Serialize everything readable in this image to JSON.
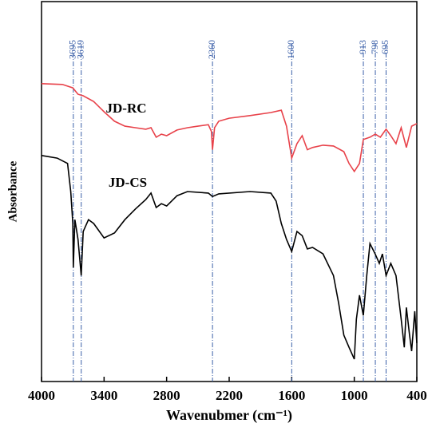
{
  "chart_data": {
    "type": "line",
    "xlabel": "Wavenubmer (cm⁻¹)",
    "ylabel": "Absorbance",
    "xlim": [
      4000,
      400
    ],
    "ylim": [
      0,
      100
    ],
    "xticks": [
      4000,
      3400,
      2800,
      2200,
      1600,
      1000,
      400
    ],
    "markers": [
      3695,
      3619,
      2360,
      1600,
      913,
      798,
      695
    ],
    "marker_color": "#3a5fa8",
    "series": [
      {
        "name": "JD-RC",
        "color": "#e8424a",
        "x": [
          4000,
          3800,
          3700,
          3650,
          3600,
          3500,
          3400,
          3300,
          3200,
          3100,
          3000,
          2950,
          2900,
          2850,
          2800,
          2700,
          2600,
          2500,
          2400,
          2370,
          2360,
          2340,
          2300,
          2200,
          2000,
          1800,
          1700,
          1650,
          1600,
          1550,
          1500,
          1450,
          1400,
          1300,
          1200,
          1100,
          1050,
          1000,
          950,
          913,
          850,
          798,
          750,
          695,
          650,
          600,
          550,
          500,
          450,
          400
        ],
        "values": [
          78.4,
          78.2,
          77.3,
          75.6,
          75.2,
          73.7,
          71.0,
          68.5,
          67.2,
          66.8,
          66.4,
          66.8,
          64.3,
          65.1,
          64.7,
          66.2,
          66.8,
          67.2,
          67.6,
          65.8,
          61.0,
          66.8,
          68.5,
          69.3,
          70.0,
          70.8,
          71.4,
          67.2,
          58.8,
          62.6,
          64.7,
          61.0,
          61.6,
          62.2,
          62.0,
          60.5,
          57.4,
          55.3,
          57.4,
          63.7,
          64.3,
          65.1,
          64.3,
          66.4,
          64.7,
          62.6,
          66.8,
          61.6,
          67.2,
          67.9
        ]
      },
      {
        "name": "JD-CS",
        "color": "#000000",
        "x": [
          4000,
          3850,
          3750,
          3720,
          3700,
          3695,
          3680,
          3650,
          3619,
          3600,
          3550,
          3500,
          3400,
          3300,
          3200,
          3100,
          3000,
          2950,
          2900,
          2850,
          2800,
          2700,
          2600,
          2400,
          2360,
          2300,
          2000,
          1800,
          1750,
          1700,
          1650,
          1600,
          1550,
          1500,
          1450,
          1400,
          1300,
          1200,
          1150,
          1100,
          1050,
          1000,
          980,
          950,
          913,
          880,
          850,
          800,
          760,
          730,
          695,
          650,
          600,
          550,
          520,
          500,
          470,
          450,
          420,
          400
        ],
        "values": [
          59.5,
          58.8,
          57.4,
          50.0,
          41.6,
          30.0,
          42.6,
          37.4,
          27.9,
          39.5,
          42.6,
          41.6,
          37.8,
          39.1,
          42.6,
          45.4,
          47.9,
          49.6,
          45.8,
          46.8,
          46.2,
          48.9,
          50.0,
          49.6,
          48.7,
          49.4,
          50.0,
          49.6,
          47.5,
          41.6,
          37.4,
          34.2,
          39.5,
          38.4,
          34.9,
          35.3,
          33.6,
          27.9,
          20.6,
          12.2,
          9.0,
          5.9,
          16.4,
          22.7,
          17.4,
          27.9,
          36.3,
          33.6,
          31.1,
          33.6,
          27.9,
          31.1,
          27.9,
          16.4,
          9.0,
          19.5,
          12.2,
          8.0,
          18.5,
          10.1
        ]
      }
    ]
  }
}
